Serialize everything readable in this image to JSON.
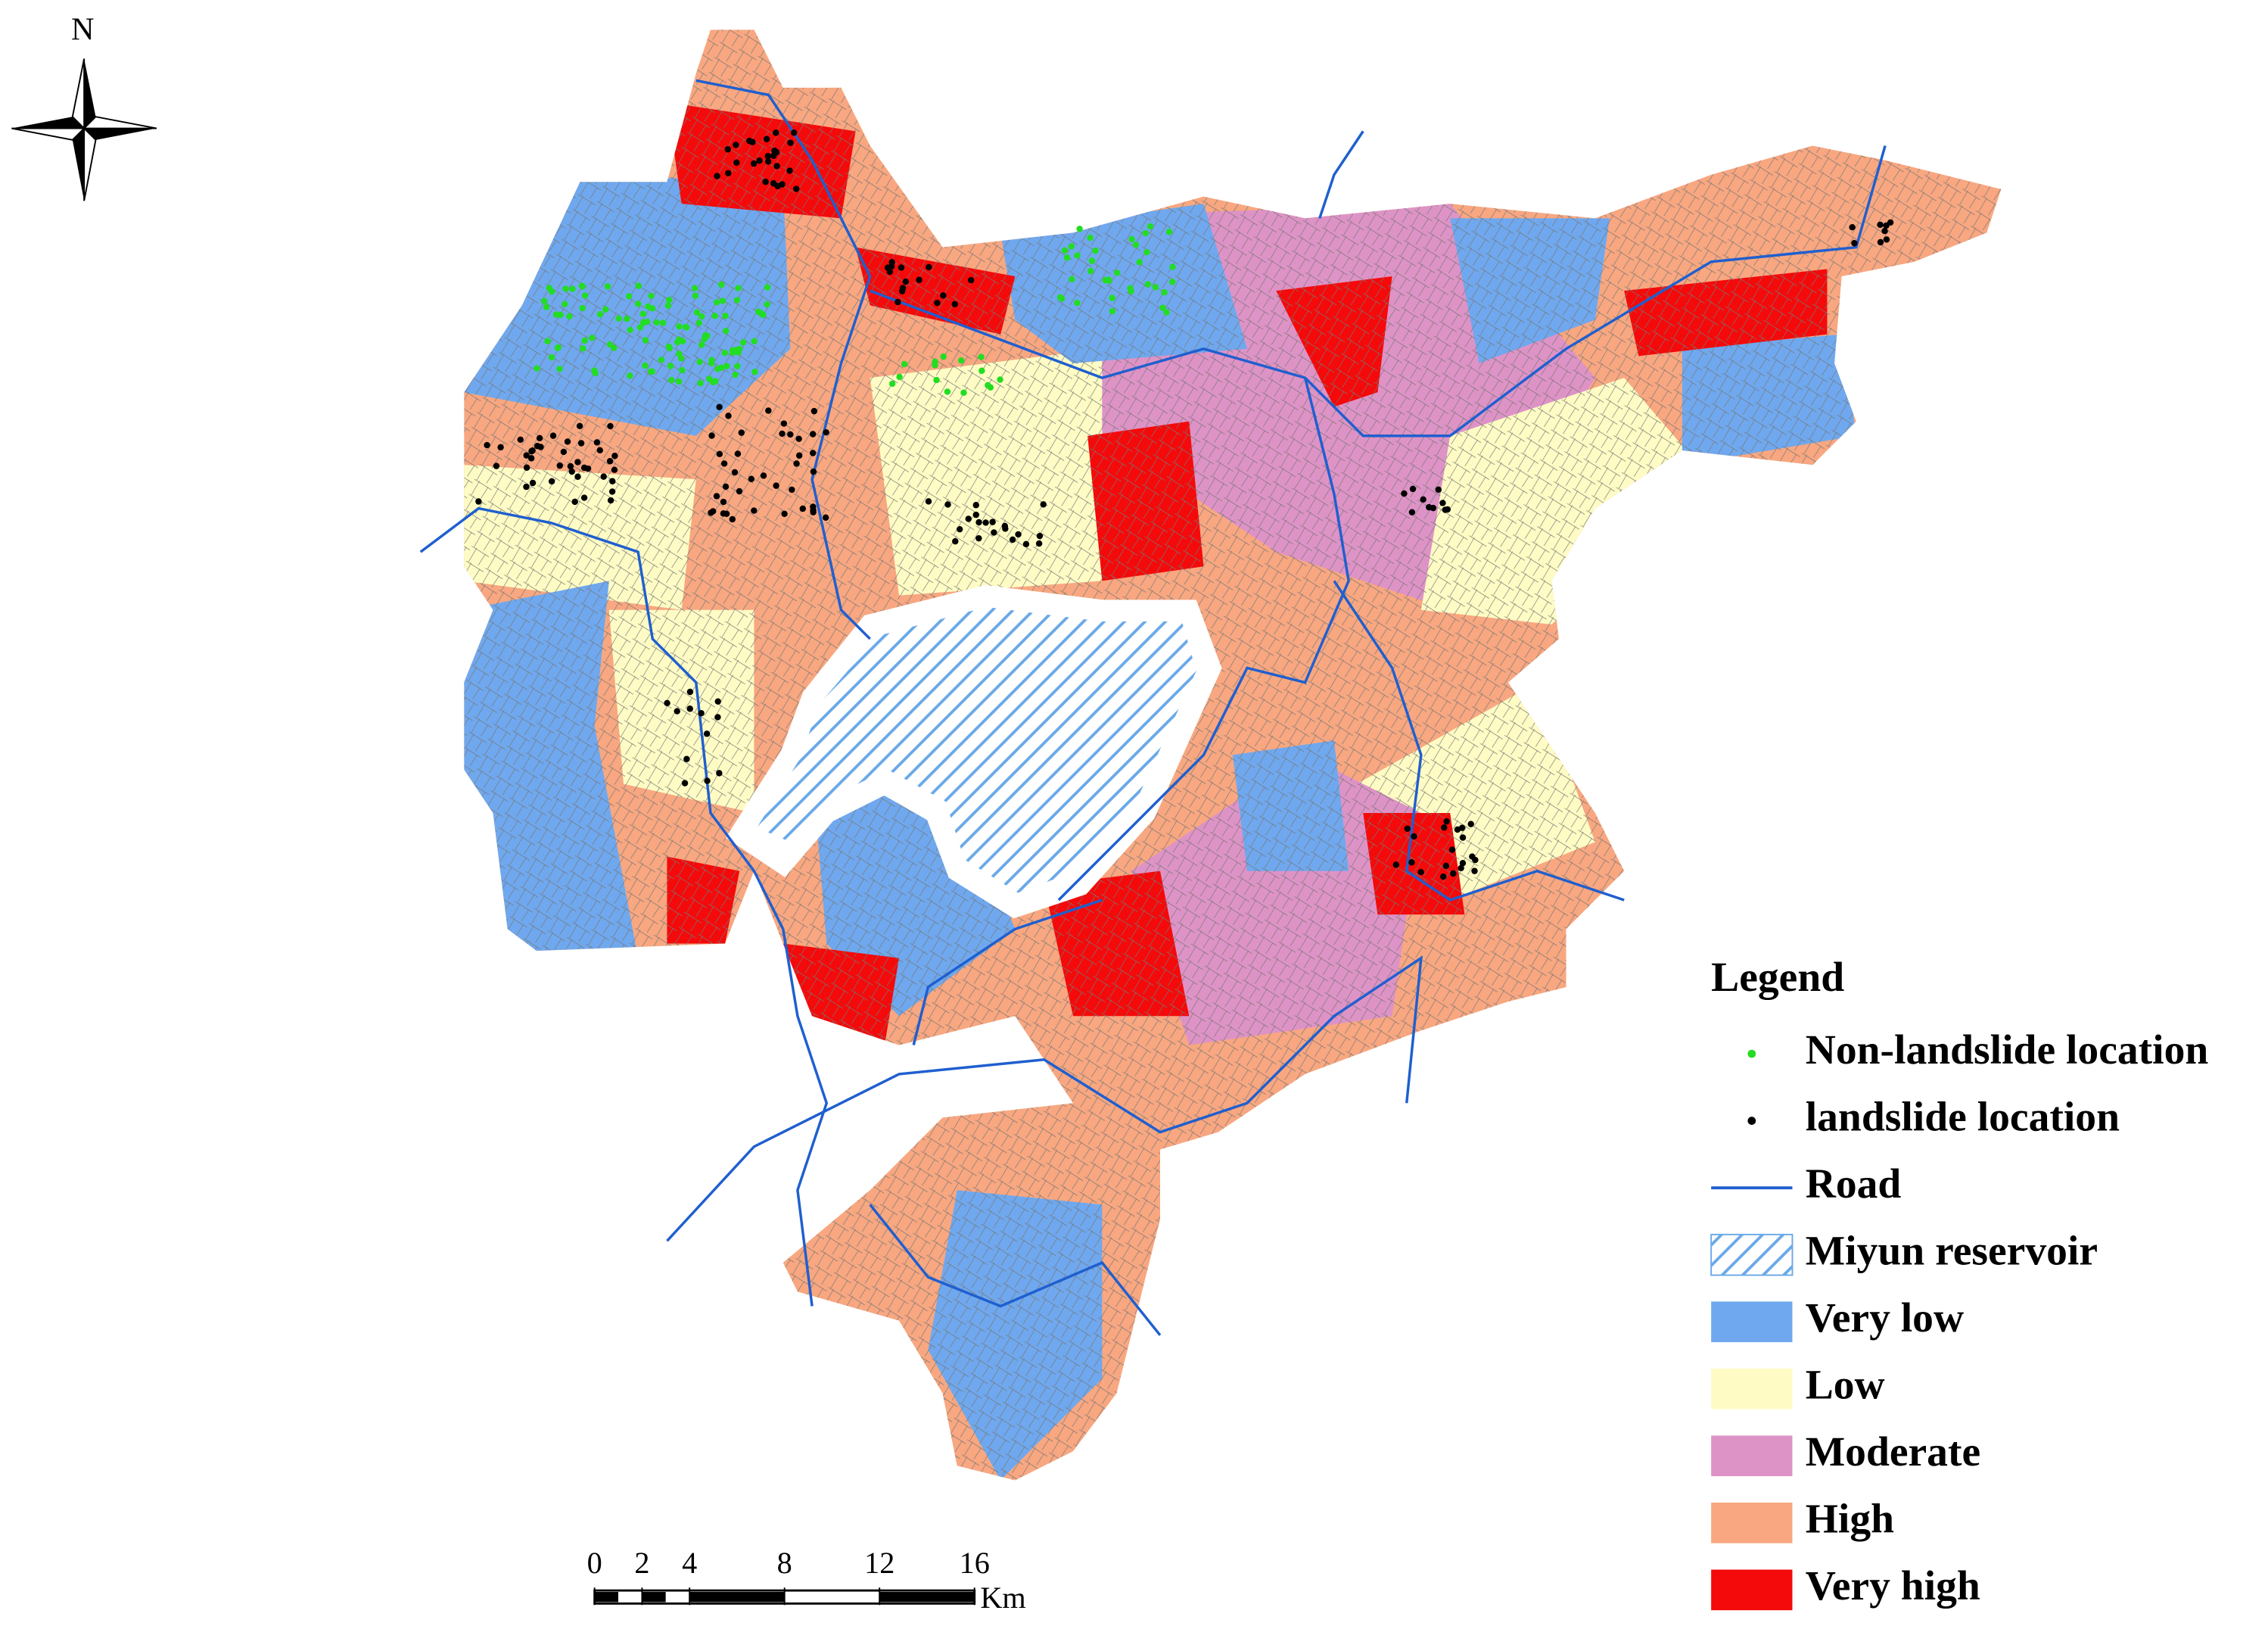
{
  "north_arrow": {
    "label": "N"
  },
  "legend": {
    "title": "Legend",
    "items": [
      {
        "label": "Non-landslide location",
        "symbol": "point",
        "color": "#22dd22"
      },
      {
        "label": "landslide location",
        "symbol": "point",
        "color": "#000000"
      },
      {
        "label": "Road",
        "symbol": "line",
        "color": "#1f5fcf"
      },
      {
        "label": "Miyun reservoir",
        "symbol": "hatch",
        "color": "#6aa9e8"
      },
      {
        "label": "Very low",
        "symbol": "box",
        "color": "#6fa8ee"
      },
      {
        "label": "Low",
        "symbol": "box",
        "color": "#fefcc4"
      },
      {
        "label": "Moderate",
        "symbol": "box",
        "color": "#de93c6"
      },
      {
        "label": "High",
        "symbol": "box",
        "color": "#f8a780"
      },
      {
        "label": "Very high",
        "symbol": "box",
        "color": "#f40a0a"
      }
    ]
  },
  "scale_bar": {
    "ticks": [
      0,
      2,
      4,
      8,
      12,
      16
    ],
    "unit": "Km"
  }
}
